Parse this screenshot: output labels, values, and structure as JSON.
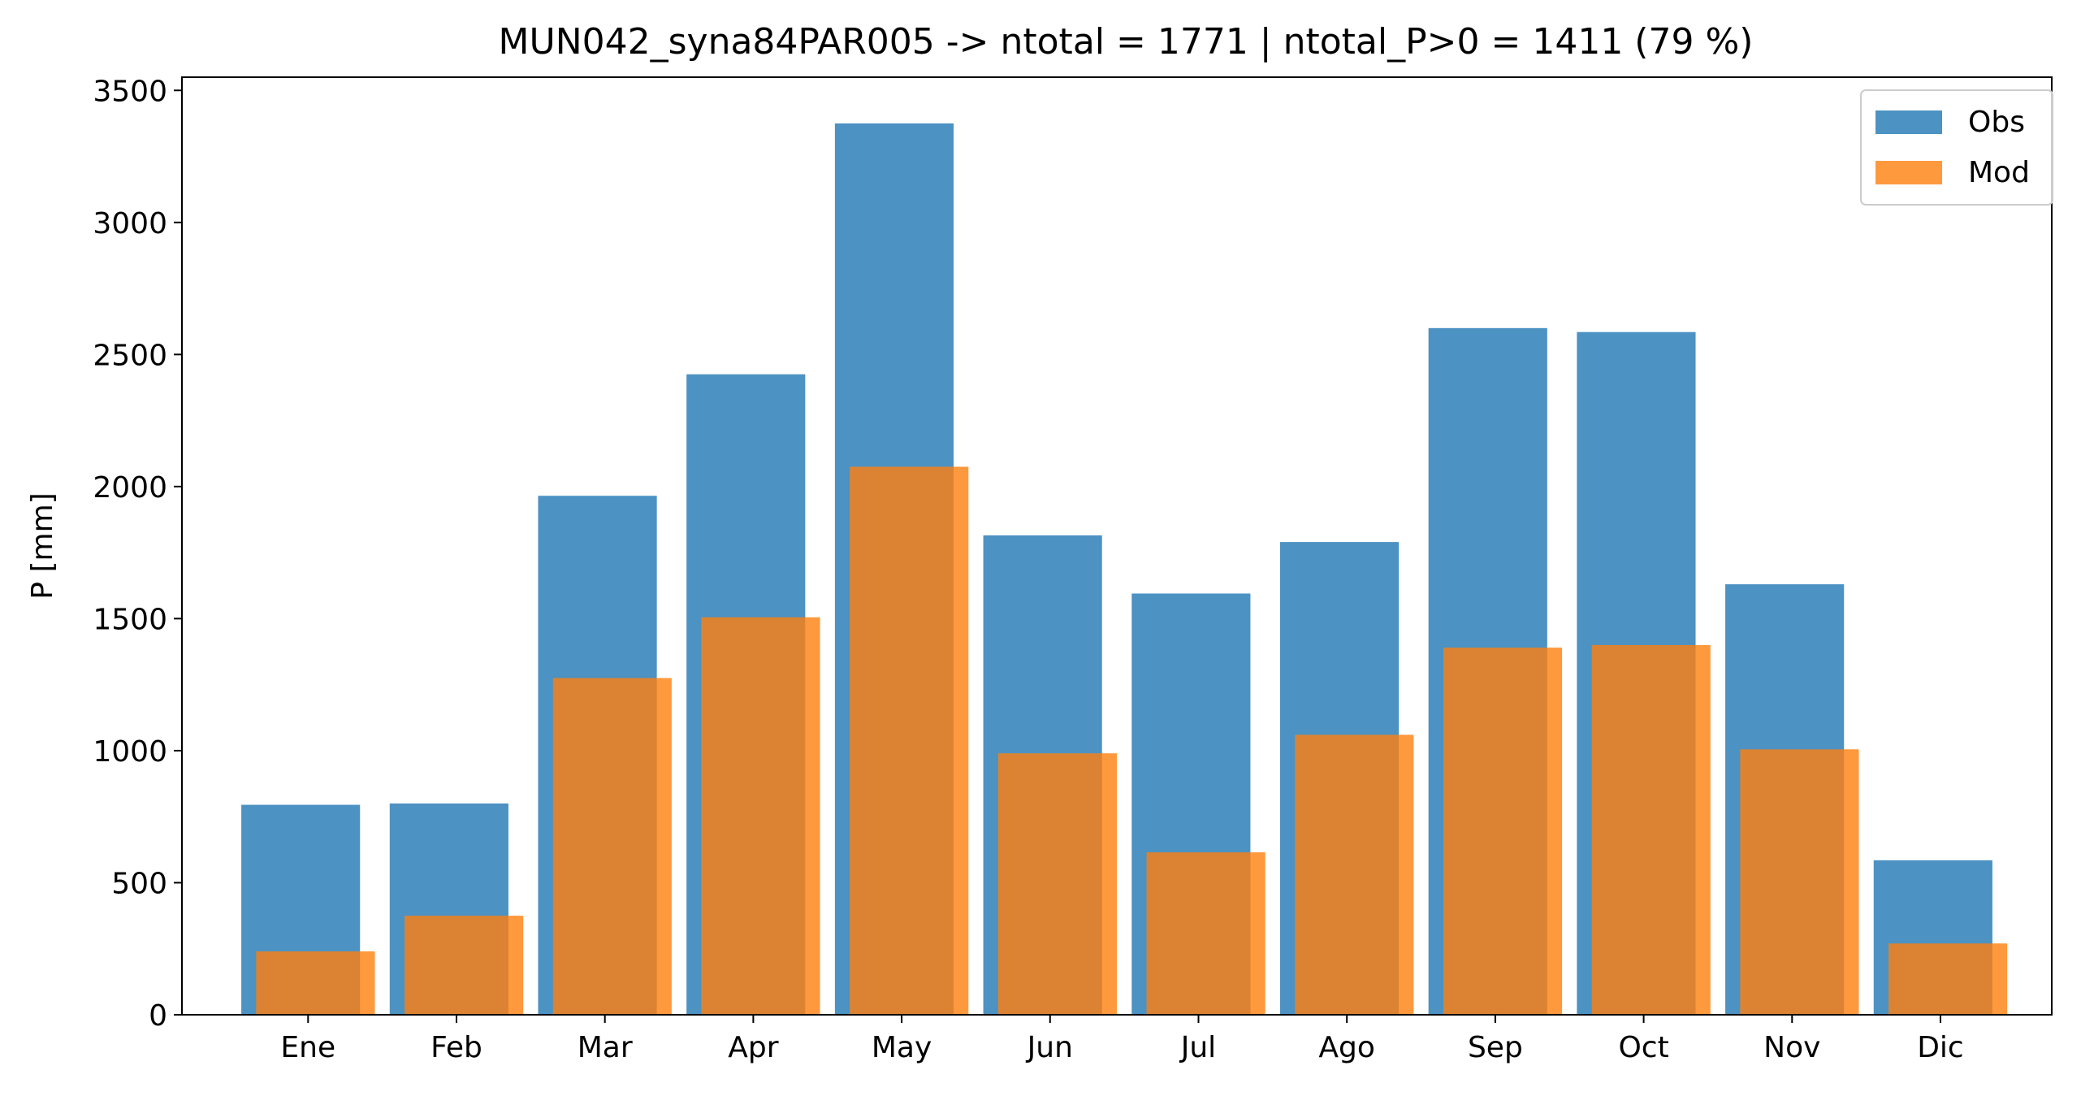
{
  "chart_data": {
    "type": "bar",
    "title": "MUN042_syna84PAR005 -> ntotal = 1771 | ntotal_P>0 = 1411 (79 %)",
    "xlabel": "",
    "ylabel": "P [mm]",
    "categories": [
      "Ene",
      "Feb",
      "Mar",
      "Apr",
      "May",
      "Jun",
      "Jul",
      "Ago",
      "Sep",
      "Oct",
      "Nov",
      "Dic"
    ],
    "series": [
      {
        "name": "Obs",
        "color": "#1f77b4",
        "opacity": 0.8,
        "values": [
          795,
          800,
          1965,
          2425,
          3375,
          1815,
          1595,
          1790,
          2600,
          2585,
          1630,
          585
        ]
      },
      {
        "name": "Mod",
        "color": "#ff7f0e",
        "opacity": 0.8,
        "values": [
          240,
          375,
          1275,
          1505,
          2075,
          990,
          615,
          1060,
          1390,
          1400,
          1005,
          270
        ]
      }
    ],
    "ylim": [
      0,
      3550
    ],
    "yticks": [
      0,
      500,
      1000,
      1500,
      2000,
      2500,
      3000,
      3500
    ],
    "grid": false,
    "legend": "top-right"
  }
}
